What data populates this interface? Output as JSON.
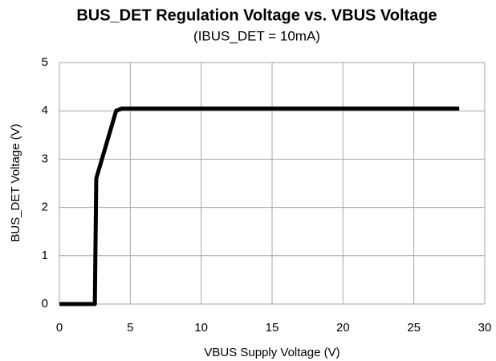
{
  "chart_data": {
    "type": "line",
    "title": "BUS_DET Regulation Voltage vs. VBUS Voltage",
    "subtitle": "(IBUS_DET = 10mA)",
    "x_label": "VBUS Supply Voltage (V)",
    "y_label": "BUS_DET Voltage (V)",
    "x": [
      0,
      2.5,
      2.6,
      3.0,
      4.0,
      4.4,
      28.2
    ],
    "series": [
      {
        "name": "BUS_DET",
        "color": "#000000",
        "values": [
          0,
          0,
          2.6,
          3.0,
          4.0,
          4.05,
          4.05
        ]
      }
    ],
    "xlim": [
      0,
      30
    ],
    "xticks": [
      0,
      5,
      10,
      15,
      20,
      25,
      30
    ],
    "ylim": [
      0,
      5
    ],
    "yticks": [
      0,
      1,
      2,
      3,
      4,
      5
    ],
    "grid": true
  }
}
